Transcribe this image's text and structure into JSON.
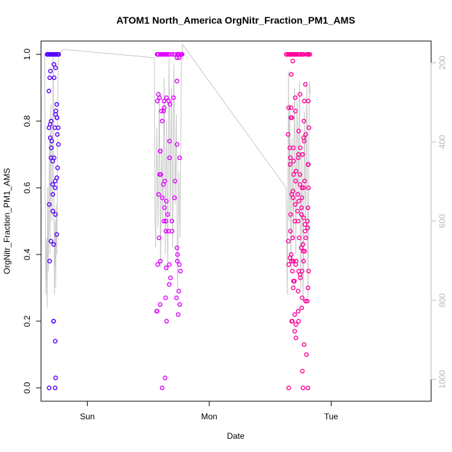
{
  "chart_data": {
    "type": "scatter",
    "title": "ATOM1 North_America OrgNitr_Fraction_PM1_AMS",
    "xlabel": "Date",
    "ylabel": "OrgNitr_Fraction_PM1_AMS",
    "x_tick_labels": [
      "Sun",
      "Mon",
      "Tue"
    ],
    "y_ticks": [
      0.0,
      0.2,
      0.4,
      0.6,
      0.8,
      1.0
    ],
    "y_tick_labels": [
      "0.0",
      "0.2",
      "0.4",
      "0.6",
      "0.8",
      "1.0"
    ],
    "ylim": [
      -0.04,
      1.04
    ],
    "y2_ticks": [
      200,
      400,
      600,
      800,
      1000
    ],
    "y2_tick_labels": [
      "200",
      "400",
      "600",
      "800",
      "1000"
    ],
    "y2lim": [
      1055,
      145
    ],
    "xlim_days": [
      -0.38,
      2.82
    ],
    "x_tick_days": [
      0.0,
      1.0,
      2.0
    ],
    "colors": {
      "series_1": "#5500ff",
      "series_2": "#dd00ff",
      "series_3": "#ff0099",
      "secondary_line": "#c8c8c8",
      "axes": "#000000",
      "right_axis": "#b8b8b8"
    },
    "grid": false,
    "legend": "none",
    "series": [
      {
        "x_range_days": [
          -0.33,
          -0.23
        ],
        "values": [
          1.0,
          1.0,
          1.0,
          1.0,
          1.0,
          1.0,
          1.0,
          1.0,
          1.0,
          1.0,
          1.0,
          1.0,
          1.0,
          1.0,
          1.0,
          1.0,
          1.0,
          1.0,
          1.0,
          0.66,
          0.78,
          0.8,
          0.81,
          0.79,
          0.78,
          0.6,
          0.53,
          0.52,
          0.46,
          0.93,
          0.93,
          0.14,
          0.03,
          0.0,
          0.0,
          0.97,
          0.96,
          0.95,
          0.89,
          0.85,
          0.83,
          0.82,
          0.81,
          0.78,
          0.76,
          0.75,
          0.74,
          0.73,
          0.72,
          0.69,
          0.68,
          0.69,
          0.63,
          0.62,
          0.61,
          0.58,
          0.55,
          0.44,
          0.43,
          0.38,
          0.2,
          0.2
        ]
      },
      {
        "x_range_days": [
          0.55,
          0.78
        ],
        "values": [
          1.0,
          1.0,
          1.0,
          1.0,
          1.0,
          1.0,
          1.0,
          1.0,
          1.0,
          1.0,
          1.0,
          1.0,
          1.0,
          1.0,
          1.0,
          1.0,
          1.0,
          1.0,
          1.0,
          1.0,
          1.0,
          1.0,
          1.0,
          1.0,
          1.0,
          0.42,
          0.88,
          0.69,
          0.86,
          0.83,
          0.62,
          0.56,
          0.54,
          0.52,
          0.5,
          0.38,
          0.37,
          0.36,
          0.0,
          0.99,
          0.99,
          0.73,
          0.74,
          0.71,
          0.64,
          0.61,
          0.57,
          0.47,
          0.33,
          0.23,
          0.03,
          0.92,
          0.87,
          0.87,
          0.86,
          0.84,
          0.8,
          0.69,
          0.64,
          0.58,
          0.5,
          0.47,
          0.45,
          0.37,
          0.27,
          0.87,
          0.86,
          0.85,
          0.83,
          0.71,
          0.62,
          0.5,
          0.4,
          0.38,
          0.25,
          0.22,
          0.2,
          0.57,
          0.47,
          0.37,
          0.35,
          0.31,
          0.29,
          0.27,
          0.25,
          0.23
        ]
      },
      {
        "x_range_days": [
          1.63,
          1.83
        ],
        "values": [
          1.0,
          1.0,
          1.0,
          1.0,
          1.0,
          1.0,
          1.0,
          1.0,
          1.0,
          1.0,
          1.0,
          1.0,
          1.0,
          1.0,
          1.0,
          1.0,
          1.0,
          1.0,
          1.0,
          1.0,
          1.0,
          1.0,
          1.0,
          1.0,
          1.0,
          0.76,
          0.7,
          0.62,
          0.59,
          0.57,
          0.54,
          0.52,
          0.5,
          0.47,
          0.39,
          0.38,
          0.37,
          0.34,
          0.19,
          0.0,
          0.67,
          0.6,
          0.45,
          0.35,
          0.15,
          0.83,
          0.81,
          0.78,
          0.76,
          0.74,
          0.72,
          0.69,
          0.67,
          0.64,
          0.61,
          0.58,
          0.55,
          0.52,
          0.49,
          0.44,
          0.41,
          0.38,
          0.35,
          0.32,
          0.3,
          0.27,
          0.24,
          0.22,
          0.2,
          0.17,
          0.13,
          0.1,
          0.05,
          0.0,
          0.98,
          0.94,
          0.88,
          0.86,
          0.84,
          0.8,
          0.77,
          0.72,
          0.7,
          0.68,
          0.65,
          0.62,
          0.57,
          0.53,
          0.5,
          0.47,
          0.43,
          0.4,
          0.37,
          0.33,
          0.3,
          0.26,
          0.23,
          0.2,
          0.0,
          0.91,
          0.87,
          0.86,
          0.84,
          0.81,
          0.75,
          0.7,
          0.67,
          0.64,
          0.6,
          0.56,
          0.51,
          0.48,
          0.45,
          0.42,
          0.38,
          0.35,
          0.32,
          0.29,
          0.26,
          0.2,
          0.72,
          0.69,
          0.6,
          0.58,
          0.54,
          0.5,
          0.45,
          0.41,
          0.38,
          0.35
        ]
      }
    ],
    "secondary_line": {
      "points": [
        [
          -0.35,
          1.0
        ],
        [
          -0.345,
          0.55
        ],
        [
          -0.34,
          0.28
        ],
        [
          -0.335,
          0.45
        ],
        [
          -0.33,
          0.24
        ],
        [
          -0.325,
          0.6
        ],
        [
          -0.32,
          0.35
        ],
        [
          -0.31,
          0.75
        ],
        [
          -0.305,
          0.4
        ],
        [
          -0.3,
          0.85
        ],
        [
          -0.29,
          0.5
        ],
        [
          -0.28,
          1.0
        ],
        [
          -0.275,
          0.62
        ],
        [
          -0.27,
          0.28
        ],
        [
          -0.265,
          0.5
        ],
        [
          -0.26,
          0.3
        ],
        [
          -0.255,
          0.55
        ],
        [
          -0.25,
          0.4
        ],
        [
          -0.245,
          0.7
        ],
        [
          -0.24,
          0.95
        ],
        [
          -0.235,
          1.0
        ],
        [
          -0.2,
          1.015
        ],
        [
          0.55,
          0.99
        ],
        [
          0.555,
          0.52
        ],
        [
          0.56,
          0.42
        ],
        [
          0.57,
          0.78
        ],
        [
          0.58,
          0.48
        ],
        [
          0.59,
          0.88
        ],
        [
          0.6,
          0.36
        ],
        [
          0.61,
          0.72
        ],
        [
          0.62,
          0.5
        ],
        [
          0.63,
          0.93
        ],
        [
          0.64,
          0.4
        ],
        [
          0.65,
          0.8
        ],
        [
          0.66,
          0.35
        ],
        [
          0.67,
          0.99
        ],
        [
          0.68,
          0.5
        ],
        [
          0.69,
          0.9
        ],
        [
          0.7,
          0.42
        ],
        [
          0.71,
          0.97
        ],
        [
          0.72,
          0.55
        ],
        [
          0.73,
          0.82
        ],
        [
          0.74,
          0.3
        ],
        [
          0.75,
          0.65
        ],
        [
          0.76,
          0.45
        ],
        [
          0.77,
          0.95
        ],
        [
          0.78,
          1.03
        ],
        [
          1.63,
          0.6
        ],
        [
          1.64,
          0.28
        ],
        [
          1.645,
          0.62
        ],
        [
          1.65,
          0.95
        ],
        [
          1.655,
          0.5
        ],
        [
          1.66,
          0.85
        ],
        [
          1.67,
          0.35
        ],
        [
          1.68,
          0.75
        ],
        [
          1.69,
          0.45
        ],
        [
          1.7,
          0.9
        ],
        [
          1.71,
          0.4
        ],
        [
          1.72,
          0.86
        ],
        [
          1.73,
          0.55
        ],
        [
          1.74,
          0.92
        ],
        [
          1.75,
          0.3
        ],
        [
          1.76,
          0.7
        ],
        [
          1.77,
          0.26
        ],
        [
          1.78,
          0.83
        ],
        [
          1.79,
          0.5
        ],
        [
          1.8,
          0.92
        ],
        [
          1.81,
          0.27
        ],
        [
          1.82,
          0.92
        ],
        [
          1.83,
          0.88
        ]
      ]
    }
  }
}
